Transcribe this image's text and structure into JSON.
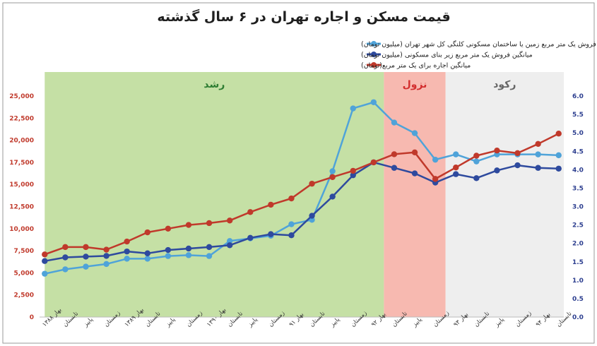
{
  "chart_data": {
    "type": "line",
    "title": "قیمت مسکن و اجاره تهران در ۶ سال گذشته",
    "categories": [
      "بهار ۱۳۸۸",
      "تابستان",
      "پاییز",
      "زمستان",
      "بهار ۱۳۸۹",
      "تابستان",
      "پاییز",
      "زمستان",
      "بهار ۱۳۹۰",
      "تابستان",
      "پاییز",
      "زمستان",
      "بهار ۹۱",
      "تابستان",
      "پاییز",
      "زمستان",
      "بهار ۹۲",
      "تابستان",
      "پاییز",
      "زمستان",
      "بهار ۹۳",
      "تابستان",
      "پاییز",
      "زمستان",
      "بهار ۹۴",
      "تابستان"
    ],
    "series": [
      {
        "name": "میانگین فروش یک متر مربع زمین یا ساختمان مسکونی کلنگی کل شهر تهران (میلیون تومان)",
        "axis": "left",
        "color": "#4fa3d9",
        "values": [
          4900,
          5400,
          5700,
          6000,
          6600,
          6600,
          6900,
          7000,
          6900,
          8600,
          8900,
          9200,
          10500,
          11000,
          16500,
          23600,
          24300,
          22000,
          20800,
          17800,
          18400,
          17600,
          18400,
          18400,
          18400,
          18300
        ]
      },
      {
        "name": "میانگین فروش یک متر مربع زیر بنای مسکونی (میلیون تومان)",
        "axis": "right",
        "color": "#2e4a9e",
        "values": [
          1.52,
          1.62,
          1.64,
          1.66,
          1.78,
          1.73,
          1.82,
          1.86,
          1.9,
          1.95,
          2.15,
          2.25,
          2.22,
          2.75,
          3.27,
          3.85,
          4.2,
          4.05,
          3.9,
          3.65,
          3.88,
          3.77,
          3.98,
          4.12,
          4.05,
          4.03
        ]
      },
      {
        "name": "میانگین اجاره برای یک متر مربع(تومان)",
        "axis": "right",
        "color": "#c0392b",
        "values": [
          1.7,
          1.9,
          1.9,
          1.83,
          2.05,
          2.3,
          2.4,
          2.5,
          2.55,
          2.62,
          2.85,
          3.05,
          3.22,
          3.62,
          3.8,
          3.97,
          4.2,
          4.42,
          4.47,
          3.75,
          4.06,
          4.38,
          4.52,
          4.45,
          4.7,
          4.98
        ]
      }
    ],
    "ylim_left": [
      0,
      25000
    ],
    "ylim_right": [
      0,
      6
    ],
    "yticks_left": [
      "0",
      "2,500",
      "5,000",
      "7,500",
      "10,000",
      "12,500",
      "15,000",
      "17,500",
      "20,000",
      "22,500",
      "25,000"
    ],
    "yticks_right": [
      "0.0",
      "0.5",
      "1.0",
      "1.5",
      "2.0",
      "2.5",
      "3.0",
      "3.5",
      "4.0",
      "4.5",
      "5.0",
      "5.5",
      "6.0"
    ],
    "bands": [
      {
        "label": "رشد",
        "from": 0,
        "to": 16.5,
        "fill": "#c5e0a5",
        "text_color": "#2e7d32"
      },
      {
        "label": "نزول",
        "from": 16.5,
        "to": 19.5,
        "fill": "#f7b9b0",
        "text_color": "#d32f2f"
      },
      {
        "label": "رکود",
        "from": 19.5,
        "to": 25.5,
        "fill": "#eeeeee",
        "text_color": "#666666"
      }
    ],
    "legend_position": "top-center",
    "grid": false
  }
}
